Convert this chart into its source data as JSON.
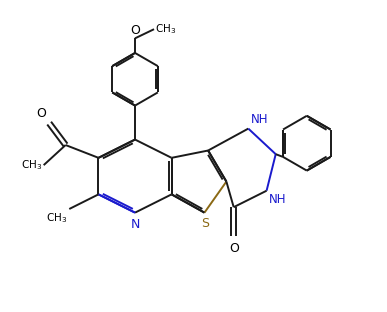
{
  "background_color": "#ffffff",
  "line_color": "#1a1a1a",
  "n_color": "#1a1acd",
  "s_color": "#8b6914",
  "lw": 1.4,
  "figsize": [
    3.87,
    3.12
  ],
  "dpi": 100,
  "xlim": [
    0,
    10
  ],
  "ylim": [
    0,
    8.5
  ]
}
